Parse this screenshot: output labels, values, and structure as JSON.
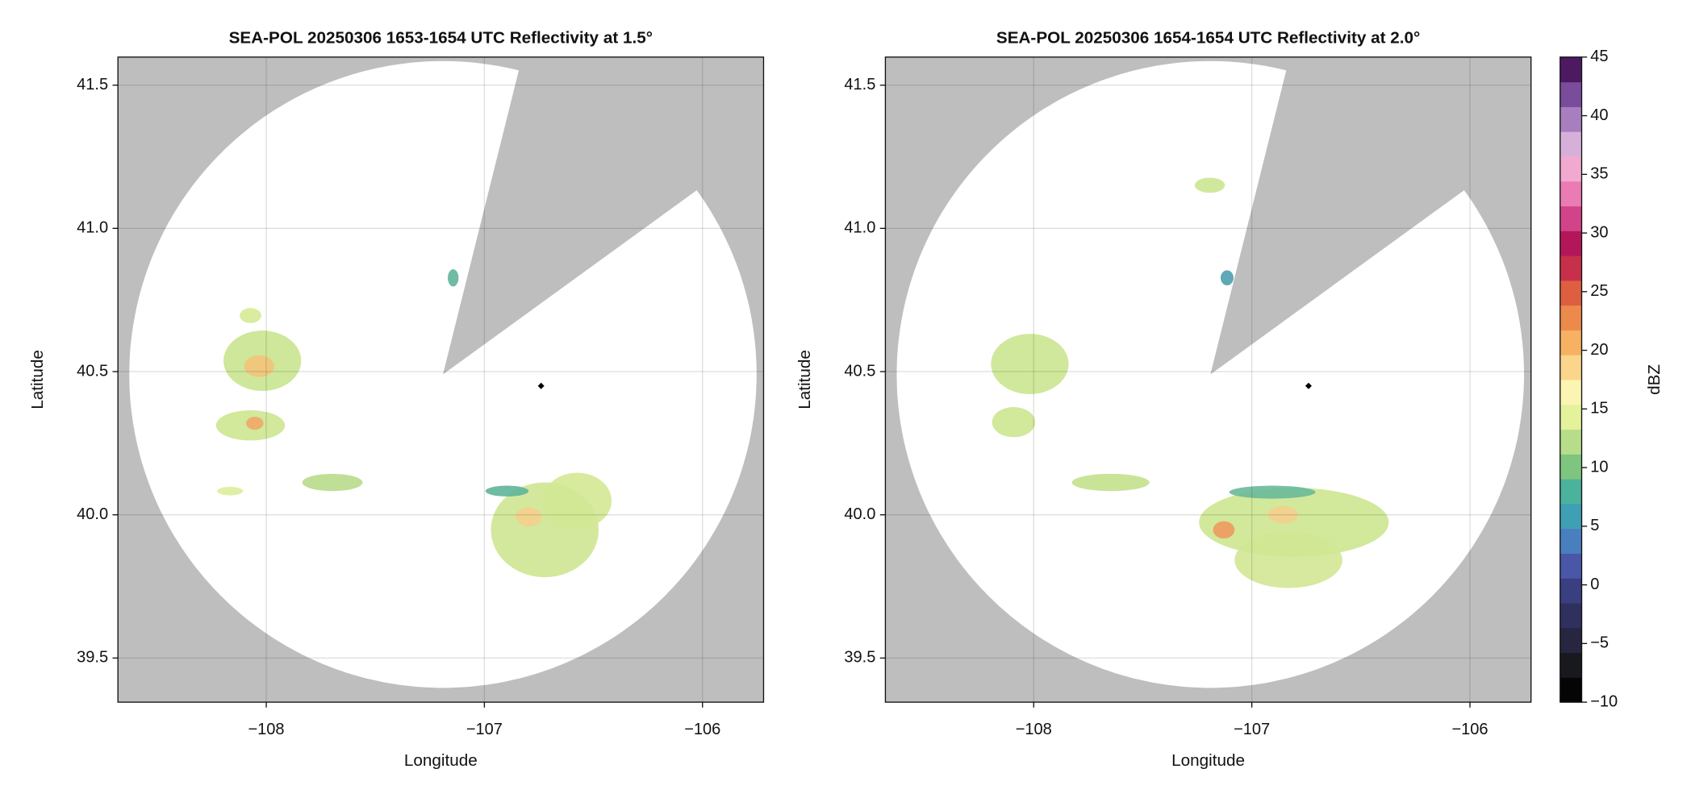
{
  "chart_data": [
    {
      "type": "radar-ppi",
      "title": "SEA-POL 20250306 1653-1654 UTC Reflectivity at 1.5°",
      "xlabel": "Longitude",
      "ylabel": "Latitude",
      "xlim": [
        -108.68,
        -105.72
      ],
      "ylim": [
        39.346,
        41.598
      ],
      "xticks": [
        {
          "value": -108,
          "label": "−108"
        },
        {
          "value": -107,
          "label": "−107"
        },
        {
          "value": -106,
          "label": "−106"
        }
      ],
      "yticks": [
        39.5,
        {
          "value": 40.0,
          "label": "40.0"
        },
        40.5,
        {
          "value": 41.0,
          "label": "41.0"
        },
        41.5
      ],
      "grid": true,
      "background_color": "#bebebe",
      "coverage": {
        "lon": -107.19,
        "lat": 40.49,
        "radius_lat": 1.094,
        "blocked_azimuths": [
          14,
          54
        ]
      },
      "marker": {
        "lon": -106.74,
        "lat": 40.45
      }
    },
    {
      "type": "radar-ppi",
      "title": "SEA-POL 20250306 1654-1654 UTC Reflectivity at 2.0°",
      "xlabel": "Longitude",
      "ylabel": "Latitude",
      "xlim": [
        -108.68,
        -105.72
      ],
      "ylim": [
        39.346,
        41.598
      ],
      "xticks": [
        {
          "value": -108,
          "label": "−108"
        },
        {
          "value": -107,
          "label": "−107"
        },
        {
          "value": -106,
          "label": "−106"
        }
      ],
      "yticks": [
        39.5,
        {
          "value": 40.0,
          "label": "40.0"
        },
        40.5,
        {
          "value": 41.0,
          "label": "41.0"
        },
        41.5
      ],
      "grid": true,
      "background_color": "#bebebe",
      "coverage": {
        "lon": -107.19,
        "lat": 40.49,
        "radius_lat": 1.094,
        "blocked_azimuths": [
          14,
          54
        ]
      },
      "marker": {
        "lon": -106.74,
        "lat": 40.45
      },
      "colorbar": {
        "label": "dBZ",
        "lim": [
          -10,
          45
        ],
        "ticks": [
          {
            "value": -10,
            "label": "−10"
          },
          {
            "value": -5,
            "label": "−5"
          },
          0,
          5,
          10,
          15,
          20,
          25,
          30,
          35,
          40,
          45
        ],
        "colors": [
          "#050505",
          "#18181f",
          "#262640",
          "#30305e",
          "#3a3f82",
          "#4a57a8",
          "#4a7fbf",
          "#3f9fb5",
          "#4bb29b",
          "#7ec57f",
          "#b8dd8a",
          "#e4f29c",
          "#fbf5b4",
          "#fbd58c",
          "#f6b163",
          "#ec8a4c",
          "#de5e42",
          "#c7304a",
          "#b3175a",
          "#d2448a",
          "#ea7cb3",
          "#f2a9cf",
          "#d7b0da",
          "#a77fbe",
          "#7a4c9c",
          "#4d1a62"
        ]
      }
    }
  ]
}
